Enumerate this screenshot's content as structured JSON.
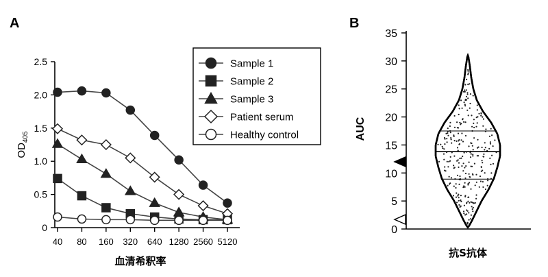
{
  "panels": {
    "a": "A",
    "b": "B"
  },
  "chart_data": [
    {
      "type": "line",
      "ylabel": "OD",
      "ylabel_sub": "405",
      "xlabel": "血清希釈率",
      "categories": [
        "40",
        "80",
        "160",
        "320",
        "640",
        "1280",
        "2560",
        "5120"
      ],
      "yticks": [
        "0",
        "0.5",
        "1.0",
        "1.5",
        "2.0",
        "2.5"
      ],
      "ylim": [
        0,
        2.5
      ],
      "legend_position": "top-right",
      "series": [
        {
          "name": "Sample 1",
          "marker": "circle",
          "fill": "#222222",
          "values": [
            2.04,
            2.06,
            2.03,
            1.77,
            1.39,
            1.02,
            0.64,
            0.37
          ]
        },
        {
          "name": "Sample 2",
          "marker": "square",
          "fill": "#222222",
          "values": [
            0.74,
            0.48,
            0.3,
            0.21,
            0.16,
            0.13,
            0.12,
            0.12
          ]
        },
        {
          "name": "Sample 3",
          "marker": "triangle",
          "fill": "#222222",
          "values": [
            1.26,
            1.03,
            0.81,
            0.55,
            0.37,
            0.23,
            0.16,
            0.12
          ]
        },
        {
          "name": "Patient serum",
          "marker": "diamond",
          "fill": "#ffffff",
          "values": [
            1.49,
            1.32,
            1.25,
            1.05,
            0.76,
            0.5,
            0.33,
            0.21
          ]
        },
        {
          "name": "Healthy control",
          "marker": "circle",
          "fill": "#ffffff",
          "values": [
            0.16,
            0.13,
            0.12,
            0.12,
            0.11,
            0.11,
            0.11,
            0.11
          ]
        }
      ]
    },
    {
      "type": "violin",
      "ylabel": "AUC",
      "xlabel": "抗S抗体",
      "yticks": [
        "0",
        "5",
        "10",
        "15",
        "20",
        "25",
        "30",
        "35"
      ],
      "ylim": [
        0,
        35
      ],
      "quartiles": {
        "q1": 8.9,
        "median": 13.8,
        "q3": 17.5
      },
      "range": [
        0.5,
        31
      ],
      "markers": [
        {
          "value": 12.0,
          "style": "filled-triangle"
        },
        {
          "value": 1.7,
          "style": "open-triangle"
        }
      ]
    }
  ]
}
